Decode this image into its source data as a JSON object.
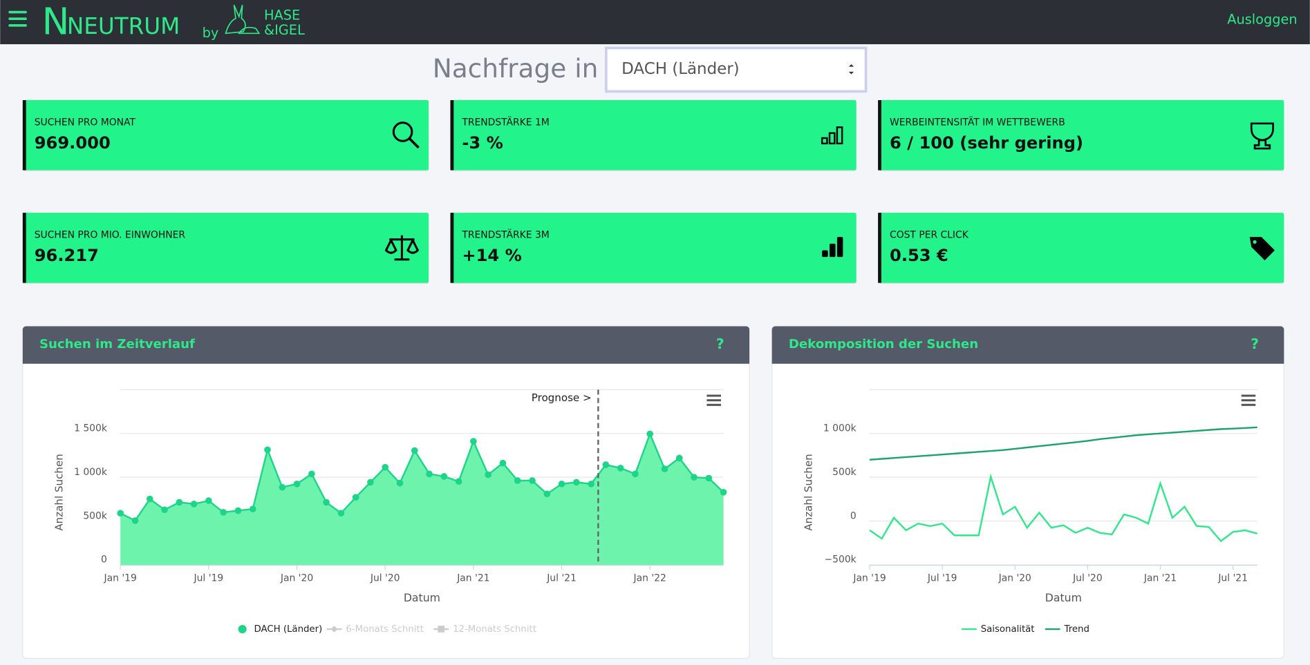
{
  "header": {
    "brand_mark": "N",
    "brand": "NEUTRUM",
    "by": "by",
    "partner_line1": "HASE",
    "partner_line2": "&IGEL",
    "logout": "Ausloggen"
  },
  "selector": {
    "label": "Nachfrage in",
    "value": "DACH (Länder)"
  },
  "cards": [
    {
      "label": "SUCHEN PRO MONAT",
      "value": "969.000"
    },
    {
      "label": "TRENDSTÄRKE 1M",
      "value": "-3 %"
    },
    {
      "label": "WERBEINTENSITÄT IM WETTBEWERB",
      "value": "6 / 100 (sehr gering)"
    },
    {
      "label": "SUCHEN PRO MIO. EINWOHNER",
      "value": "96.217"
    },
    {
      "label": "TRENDSTÄRKE 3M",
      "value": "+14 %"
    },
    {
      "label": "COST PER CLICK",
      "value": "0.53 €"
    }
  ],
  "chart_data": [
    {
      "type": "area",
      "title": "Suchen im Zeitverlauf",
      "help": "?",
      "annotation": "Prognose >",
      "x_label": "Datum",
      "y_label": "Anzahl Suchen",
      "categories": [
        "Jan '19",
        null,
        null,
        null,
        null,
        null,
        "Jul '19",
        null,
        null,
        null,
        null,
        null,
        "Jan '20",
        null,
        null,
        null,
        null,
        null,
        "Jul '20",
        null,
        null,
        null,
        null,
        null,
        "Jan '21",
        null,
        null,
        null,
        null,
        null,
        "Jul '21",
        null,
        null,
        null,
        null,
        null,
        "Jan '22",
        null,
        null,
        null,
        null,
        null
      ],
      "series": [
        {
          "name": "DACH (Länder)",
          "color": "#1dd588",
          "values": [
            590000,
            505000,
            752000,
            629000,
            714000,
            695000,
            733000,
            600000,
            619000,
            638000,
            1314000,
            886000,
            924000,
            1038000,
            714000,
            590000,
            771000,
            943000,
            1114000,
            933000,
            1305000,
            1038000,
            1010000,
            952000,
            1410000,
            1029000,
            1162000,
            962000,
            962000,
            810000,
            924000,
            943000,
            924000,
            1143000,
            1105000,
            1038000,
            1495000,
            1095000,
            1219000,
            1000000,
            990000,
            829000
          ]
        }
      ],
      "legend_inactive": [
        "6-Monats Schnitt",
        "12-Monats Schnitt"
      ],
      "ylim": [
        0,
        2000000
      ],
      "yticks": [
        0,
        {
          "value": 500000,
          "label": "500k"
        },
        {
          "value": 1000000,
          "label": "1 000k"
        },
        {
          "value": 1500000,
          "label": "1 500k"
        }
      ],
      "grid": true
    },
    {
      "type": "line",
      "title": "Dekomposition der Suchen",
      "help": "?",
      "x_label": "Datum",
      "y_label": "Anzahl Suchen",
      "categories": [
        "Jan '19",
        null,
        null,
        null,
        null,
        null,
        "Jul '19",
        null,
        null,
        null,
        null,
        null,
        "Jan '20",
        null,
        null,
        null,
        null,
        null,
        "Jul '20",
        null,
        null,
        null,
        null,
        null,
        "Jan '21",
        null,
        null,
        null,
        null,
        null,
        "Jul '21",
        null,
        null
      ],
      "series": [
        {
          "name": "Saisonalität",
          "color": "#2ee88a",
          "values": [
            -105000,
            -200000,
            38000,
            -105000,
            -29000,
            -57000,
            -29000,
            -163000,
            -163000,
            -163000,
            507000,
            76000,
            163000,
            -76000,
            96000,
            -76000,
            -48000,
            -134000,
            -76000,
            -134000,
            -153000,
            76000,
            38000,
            -29000,
            430000,
            38000,
            163000,
            -57000,
            -67000,
            -229000,
            -124000,
            -105000,
            -143000
          ]
        },
        {
          "name": "Trend",
          "color": "#1aa46a",
          "values": [
            700000,
            710000,
            720000,
            730000,
            740000,
            750000,
            760000,
            770000,
            780000,
            790000,
            800000,
            810000,
            825000,
            840000,
            855000,
            870000,
            885000,
            900000,
            915000,
            935000,
            950000,
            965000,
            980000,
            990000,
            1000000,
            1010000,
            1020000,
            1030000,
            1040000,
            1050000,
            1055000,
            1062000,
            1070000
          ]
        }
      ],
      "ylim": [
        -500000,
        1500000
      ],
      "yticks": [
        {
          "value": -500000,
          "label": "−500k"
        },
        0,
        {
          "value": 500000,
          "label": "500k"
        },
        {
          "value": 1000000,
          "label": "1 000k"
        }
      ],
      "grid": true
    }
  ]
}
